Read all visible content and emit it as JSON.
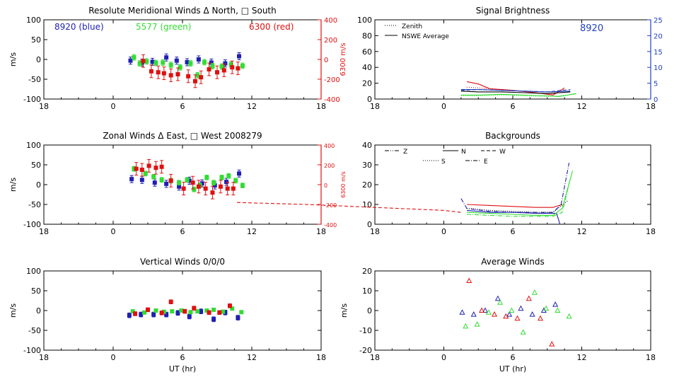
{
  "figure": {
    "xlabel": "UT (hr)"
  },
  "colors": {
    "blue": "#1f1fb4",
    "green": "#33dd33",
    "red": "#e01010",
    "black": "#000000",
    "navy": "#2040c0"
  },
  "chart_data": [
    {
      "type": "scatter",
      "id": "meridional",
      "title": "Resolute Meridional Winds Δ North, □ South",
      "ylabel": "m/s",
      "ylabel_right": "6300 m/s",
      "xticks": [
        "18",
        "0",
        "6",
        "12",
        "18"
      ],
      "ylim": [
        -100,
        100
      ],
      "yticks": [
        "100",
        "50",
        "0",
        "-50",
        "-100"
      ],
      "ylim_right": [
        -400,
        400
      ],
      "yticks_right": [
        "400",
        "200",
        "0",
        "-200",
        "-400"
      ],
      "legend": [
        {
          "text": "8920 (blue)",
          "color": "blue"
        },
        {
          "text": "5577 (green)",
          "color": "green"
        },
        {
          "text": "6300 (red)",
          "color": "red"
        }
      ],
      "series": [
        {
          "name": "8920",
          "color": "blue",
          "err": 9,
          "x": [
            1.5,
            2.5,
            3.4,
            4.6,
            5.5,
            6.4,
            7.4,
            8.5,
            9.7,
            10.9
          ],
          "y": [
            -3,
            -8,
            -6,
            5,
            -3,
            -7,
            0,
            -8,
            -10,
            8
          ]
        },
        {
          "name": "5577",
          "color": "green",
          "err": 7,
          "x": [
            1.8,
            2.3,
            2.9,
            3.7,
            4.3,
            5.0,
            5.8,
            6.7,
            7.3,
            7.9,
            8.6,
            9.4,
            10.2,
            11.2
          ],
          "y": [
            5,
            -10,
            -5,
            -9,
            -8,
            -14,
            -20,
            -10,
            -40,
            -7,
            -17,
            -18,
            -13,
            -16
          ]
        },
        {
          "name": "6300",
          "color": "red",
          "err": 4,
          "x": [
            2.6,
            3.3,
            3.9,
            4.4,
            5.0,
            5.6,
            6.5,
            7.1,
            7.6,
            8.3,
            9.0,
            9.6,
            10.3,
            10.8
          ],
          "y": [
            -16,
            -120,
            -130,
            -140,
            -160,
            -150,
            -170,
            -220,
            -180,
            -100,
            -130,
            -110,
            -80,
            -90
          ]
        }
      ]
    },
    {
      "type": "line",
      "id": "brightness",
      "title": "Signal Brightness",
      "annotation": "8920",
      "xticks": [
        "18",
        "0",
        "6",
        "12",
        "18"
      ],
      "ylim": [
        0,
        100
      ],
      "yticks": [
        "100",
        "80",
        "60",
        "40",
        "20",
        "0"
      ],
      "ylim_right": [
        0,
        25
      ],
      "yticks_right": [
        "25",
        "20",
        "15",
        "10",
        "5",
        "0"
      ],
      "legend": [
        {
          "text": "Zenith",
          "style": "dotted"
        },
        {
          "text": "NSWE Average",
          "style": "solid"
        }
      ],
      "series": [
        {
          "name": "red solid",
          "color": "red",
          "dash": "",
          "x": [
            2.0,
            3.0,
            4.0,
            6.0,
            8.0,
            9.5,
            10.5
          ],
          "y": [
            22,
            19,
            13,
            11,
            8,
            5,
            14
          ]
        },
        {
          "name": "red dotted",
          "color": "red",
          "dash": "1,2",
          "x": [
            2.0,
            4.0,
            6.0,
            8.0,
            9.5,
            10.5
          ],
          "y": [
            15,
            13,
            11,
            8,
            6,
            12
          ]
        },
        {
          "name": "navy solid",
          "color": "navy",
          "dash": "",
          "x": [
            1.5,
            3.0,
            5.0,
            7.0,
            9.0,
            11.0
          ],
          "y": [
            12,
            12,
            11,
            10,
            9,
            10
          ]
        },
        {
          "name": "navy dashed",
          "color": "navy",
          "dash": "5,3",
          "x": [
            1.5,
            3.0,
            5.0,
            7.0,
            9.0,
            11.0
          ],
          "y": [
            11,
            12,
            11,
            10,
            9,
            12
          ]
        },
        {
          "name": "black solid",
          "color": "black",
          "dash": "",
          "x": [
            1.5,
            3.0,
            5.0,
            7.0,
            9.0,
            11.0
          ],
          "y": [
            10,
            9,
            9,
            8,
            7,
            9
          ]
        },
        {
          "name": "green solid",
          "color": "green",
          "dash": "",
          "x": [
            1.5,
            3.0,
            5.0,
            7.0,
            9.0,
            10.0,
            11.5
          ],
          "y": [
            5,
            5,
            6,
            5,
            4,
            3,
            7
          ]
        },
        {
          "name": "green dotted",
          "color": "green",
          "dash": "1,2",
          "x": [
            1.5,
            3.0,
            5.0,
            7.0,
            9.0,
            11.5
          ],
          "y": [
            4,
            4,
            5,
            4,
            3,
            6
          ]
        }
      ]
    },
    {
      "type": "scatter",
      "id": "zonal",
      "title": "Zonal Winds Δ East, □ West 2008279",
      "ylabel": "m/s",
      "ylabel_right": "6300 m/s",
      "xticks": [
        "18",
        "0",
        "6",
        "12",
        "18"
      ],
      "ylim": [
        -100,
        100
      ],
      "yticks": [
        "100",
        "50",
        "0",
        "-50",
        "-100"
      ],
      "ylim_right": [
        -400,
        400
      ],
      "yticks_right": [
        "400",
        "200",
        "0",
        "-200",
        "-400"
      ],
      "series": [
        {
          "name": "8920",
          "color": "blue",
          "err": 9,
          "x": [
            1.6,
            2.5,
            3.6,
            4.6,
            5.7,
            6.6,
            7.7,
            8.8,
            9.8,
            10.9
          ],
          "y": [
            14,
            12,
            5,
            2,
            -5,
            10,
            3,
            -2,
            7,
            28
          ]
        },
        {
          "name": "5577",
          "color": "green",
          "err": 6,
          "x": [
            1.8,
            2.8,
            3.5,
            4.2,
            5.0,
            5.7,
            6.4,
            7.0,
            7.5,
            8.1,
            8.7,
            9.4,
            10.0,
            10.6,
            11.2
          ],
          "y": [
            40,
            28,
            20,
            12,
            10,
            5,
            12,
            -12,
            -2,
            18,
            5,
            18,
            22,
            10,
            -2
          ]
        },
        {
          "name": "6300",
          "color": "red",
          "err": 4,
          "x": [
            2.0,
            2.5,
            3.1,
            3.7,
            4.2,
            5.0,
            6.1,
            6.9,
            7.4,
            8.0,
            8.6,
            9.3,
            9.9,
            10.4
          ],
          "y": [
            160,
            150,
            190,
            170,
            180,
            40,
            -40,
            20,
            -20,
            -40,
            -80,
            -20,
            -40,
            -40
          ]
        }
      ]
    },
    {
      "type": "line",
      "id": "backgrounds",
      "title": "Backgrounds",
      "xticks": [
        "18",
        "0",
        "6",
        "12",
        "18"
      ],
      "ylim": [
        0,
        40
      ],
      "yticks": [
        "40",
        "30",
        "20",
        "10",
        "0"
      ],
      "legend": [
        {
          "text": "Z",
          "style": "dashdotdot"
        },
        {
          "text": "N",
          "style": "solid"
        },
        {
          "text": "W",
          "style": "dashed"
        },
        {
          "text": "S",
          "style": "dotted"
        },
        {
          "text": "E",
          "style": "dashdot"
        }
      ],
      "series": [
        {
          "name": "red dashed",
          "color": "red",
          "dash": "5,3",
          "x": [
            -18.0,
            -12.0,
            -6.0,
            0.0,
            1.5
          ],
          "y": [
            11,
            10,
            8.5,
            7,
            6
          ]
        },
        {
          "name": "red solid",
          "color": "red",
          "dash": "",
          "x": [
            2.0,
            4.0,
            6.0,
            8.0,
            9.5,
            10.3
          ],
          "y": [
            10,
            9.5,
            9,
            8.5,
            8.5,
            10
          ]
        },
        {
          "name": "blue dashdot",
          "color": "blue",
          "dash": "6,2,1,2",
          "x": [
            1.5,
            2.0,
            4.0,
            6.0,
            8.0,
            9.5,
            10.2,
            10.9
          ],
          "y": [
            13,
            8,
            6.5,
            6,
            6,
            6,
            10,
            31
          ]
        },
        {
          "name": "blue solid",
          "color": "blue",
          "dash": "",
          "x": [
            2.0,
            4.0,
            6.0,
            8.0,
            9.8,
            10.0,
            10.1
          ],
          "y": [
            7,
            6,
            6,
            5.5,
            5.5,
            2,
            0
          ]
        },
        {
          "name": "black dotted",
          "color": "black",
          "dash": "1,2",
          "x": [
            2.0,
            4.0,
            6.0,
            8.0,
            9.5,
            10.8
          ],
          "y": [
            8,
            7,
            6.5,
            6,
            6,
            12
          ]
        },
        {
          "name": "green solid",
          "color": "green",
          "dash": "",
          "x": [
            2.0,
            4.0,
            6.0,
            8.0,
            9.5,
            10.3,
            11.2
          ],
          "y": [
            6,
            5.5,
            5,
            4.5,
            4.5,
            8,
            27
          ]
        },
        {
          "name": "green dashdot",
          "color": "green",
          "dash": "6,2,1,2",
          "x": [
            2.0,
            4.0,
            6.0,
            8.0,
            9.5,
            10.3,
            11.0
          ],
          "y": [
            5,
            4.5,
            4,
            4,
            4,
            6,
            23
          ]
        }
      ]
    },
    {
      "type": "scatter",
      "id": "vertical",
      "title": "Vertical Winds 0/0/0",
      "ylabel": "m/s",
      "xlabel": "UT (hr)",
      "xticks": [
        "18",
        "0",
        "6",
        "12",
        "18"
      ],
      "ylim": [
        -100,
        100
      ],
      "yticks": [
        "100",
        "50",
        "0",
        "-50",
        "-100"
      ],
      "series": [
        {
          "name": "8920",
          "color": "blue",
          "err": 6,
          "x": [
            1.4,
            2.4,
            3.5,
            4.6,
            5.6,
            6.6,
            7.6,
            8.7,
            9.7,
            10.8
          ],
          "y": [
            -12,
            -10,
            -10,
            -10,
            -6,
            -15,
            -2,
            -22,
            -5,
            -18
          ]
        },
        {
          "name": "5577",
          "color": "green",
          "err": 4,
          "x": [
            1.7,
            2.7,
            3.7,
            4.4,
            5.1,
            5.9,
            6.7,
            7.3,
            8.1,
            8.7,
            9.5,
            10.3,
            11.1
          ],
          "y": [
            -2,
            -5,
            0,
            -3,
            -2,
            0,
            -4,
            -2,
            0,
            2,
            -3,
            5,
            -4
          ]
        },
        {
          "name": "6300",
          "color": "red",
          "err": 5,
          "x": [
            1.9,
            3.0,
            4.2,
            5.0,
            6.2,
            7.0,
            8.3,
            9.2,
            10.1
          ],
          "y": [
            -8,
            2,
            -6,
            22,
            -2,
            6,
            -5,
            -5,
            12
          ]
        }
      ]
    },
    {
      "type": "scatter",
      "id": "average",
      "title": "Average Winds",
      "ylabel": "m/s",
      "xlabel": "UT (hr)",
      "xticks": [
        "18",
        "0",
        "6",
        "12",
        "18"
      ],
      "ylim": [
        -20,
        20
      ],
      "yticks": [
        "20",
        "10",
        "0",
        "-10",
        "-20"
      ],
      "series": [
        {
          "name": "8920",
          "color": "blue",
          "x": [
            1.6,
            2.6,
            3.6,
            4.7,
            5.7,
            6.7,
            7.7,
            8.7,
            9.7
          ],
          "y": [
            -1,
            -2,
            0,
            6,
            -2,
            1,
            -2,
            0,
            3
          ]
        },
        {
          "name": "5577",
          "color": "green",
          "x": [
            1.9,
            2.9,
            3.9,
            4.9,
            5.9,
            6.9,
            7.9,
            8.9,
            9.9,
            10.9
          ],
          "y": [
            -8,
            -7,
            -1,
            4,
            0,
            -11,
            9,
            1,
            0,
            -3
          ]
        },
        {
          "name": "6300",
          "color": "red",
          "x": [
            2.2,
            3.3,
            4.4,
            5.4,
            6.4,
            7.4,
            8.4,
            9.4
          ],
          "y": [
            15,
            0,
            -2,
            -3,
            -4,
            6,
            -4,
            -17
          ]
        }
      ]
    }
  ]
}
